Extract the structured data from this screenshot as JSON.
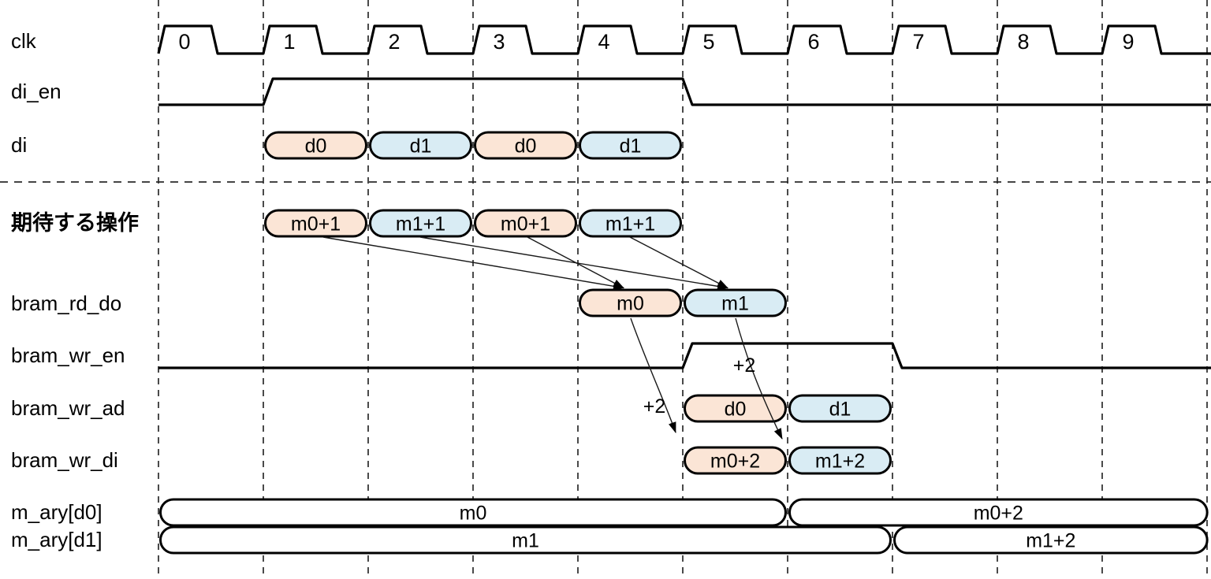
{
  "colors": {
    "orange": "#fbe5d6",
    "blue": "#d9ecf4",
    "white": "#ffffff",
    "stroke": "#000000",
    "grid": "#2b2b2b"
  },
  "clock": {
    "label": "clk",
    "numbers": [
      "0",
      "1",
      "2",
      "3",
      "4",
      "5",
      "6",
      "7",
      "8",
      "9"
    ]
  },
  "row_labels": {
    "clk": "clk",
    "di_en": "di_en",
    "di": "di",
    "expected": "期待する操作",
    "bram_rd_do": "bram_rd_do",
    "bram_wr_en": "bram_wr_en",
    "bram_wr_ad": "bram_wr_ad",
    "bram_wr_di": "bram_wr_di",
    "m_ary_d0": "m_ary[d0]",
    "m_ary_d1": "m_ary[d1]"
  },
  "enable_signals": {
    "di_en": {
      "high_from_cycle": 1,
      "high_to_cycle": 5
    },
    "bram_wr_en": {
      "high_from_cycle": 5,
      "high_to_cycle": 7
    }
  },
  "pills": {
    "di": [
      {
        "start": 1,
        "end": 2,
        "fill": "orange",
        "label": "d0"
      },
      {
        "start": 2,
        "end": 3,
        "fill": "blue",
        "label": "d1"
      },
      {
        "start": 3,
        "end": 4,
        "fill": "orange",
        "label": "d0"
      },
      {
        "start": 4,
        "end": 5,
        "fill": "blue",
        "label": "d1"
      }
    ],
    "expected": [
      {
        "start": 1,
        "end": 2,
        "fill": "orange",
        "label": "m0+1"
      },
      {
        "start": 2,
        "end": 3,
        "fill": "blue",
        "label": "m1+1"
      },
      {
        "start": 3,
        "end": 4,
        "fill": "orange",
        "label": "m0+1"
      },
      {
        "start": 4,
        "end": 5,
        "fill": "blue",
        "label": "m1+1"
      }
    ],
    "bram_rd_do": [
      {
        "start": 4,
        "end": 5,
        "fill": "orange",
        "label": "m0"
      },
      {
        "start": 5,
        "end": 6,
        "fill": "blue",
        "label": "m1"
      }
    ],
    "bram_wr_ad": [
      {
        "start": 5,
        "end": 6,
        "fill": "orange",
        "label": "d0"
      },
      {
        "start": 6,
        "end": 7,
        "fill": "blue",
        "label": "d1"
      }
    ],
    "bram_wr_di": [
      {
        "start": 5,
        "end": 6,
        "fill": "orange",
        "label": "m0+2"
      },
      {
        "start": 6,
        "end": 7,
        "fill": "blue",
        "label": "m1+2"
      }
    ],
    "m_ary_d0": [
      {
        "start": 0,
        "end": 6,
        "fill": "white",
        "label": "m0"
      },
      {
        "start": 6,
        "end": 10.02,
        "fill": "white",
        "label": "m0+2"
      }
    ],
    "m_ary_d1": [
      {
        "start": 0,
        "end": 7,
        "fill": "white",
        "label": "m1"
      },
      {
        "start": 7,
        "end": 10.02,
        "fill": "white",
        "label": "m1+2"
      }
    ]
  },
  "annotations": {
    "rd_to_wr_d0": "+2",
    "rd_to_wr_d1": "+2"
  }
}
